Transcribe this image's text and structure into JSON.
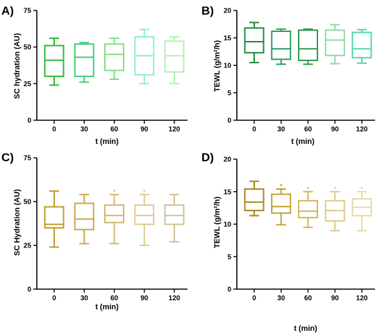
{
  "figure": {
    "panels": [
      {
        "letter": "A)",
        "ylabel": "SC hydration (AU)",
        "xlabel": "t (min)"
      },
      {
        "letter": "B)",
        "ylabel": "TEWL (g/m²/h)",
        "xlabel": "t (min)"
      },
      {
        "letter": "C)",
        "ylabel": "SC Hydration (AU)",
        "xlabel": "t (min)"
      },
      {
        "letter": "D)",
        "ylabel": "TEWL (g/m²/h)",
        "xlabel": "t (min)"
      }
    ]
  },
  "chart_data": [
    {
      "type": "boxplot",
      "title": "",
      "xlabel": "t (min)",
      "ylabel": "SC hydration (AU)",
      "categories": [
        "0",
        "30",
        "60",
        "90",
        "120"
      ],
      "ylim": [
        0,
        75
      ],
      "yticks": [
        0,
        25,
        50,
        75
      ],
      "boxes": [
        {
          "min": 24,
          "q1": 30,
          "median": 41,
          "q3": 51,
          "max": 56
        },
        {
          "min": 26,
          "q1": 30,
          "median": 43,
          "q3": 52,
          "max": 53
        },
        {
          "min": 28,
          "q1": 34,
          "median": 45,
          "q3": 52,
          "max": 56
        },
        {
          "min": 25,
          "q1": 31,
          "median": 44,
          "q3": 57,
          "max": 62
        },
        {
          "min": 25,
          "q1": 33,
          "median": 44,
          "q3": 54,
          "max": 57
        }
      ],
      "colors": [
        "#2db82d",
        "#3dcf7a",
        "#7fe07f",
        "#8ef0c8",
        "#b0f2b0"
      ],
      "markers": [
        "",
        "",
        "",
        "",
        ""
      ]
    },
    {
      "type": "boxplot",
      "title": "",
      "xlabel": "t (min)",
      "ylabel": "TEWL (g/m²/h)",
      "categories": [
        "0",
        "30",
        "60",
        "90",
        "120"
      ],
      "ylim": [
        0,
        20
      ],
      "yticks": [
        0,
        5,
        10,
        15,
        20
      ],
      "boxes": [
        {
          "min": 10.5,
          "q1": 12.3,
          "median": 14.3,
          "q3": 16.8,
          "max": 17.8
        },
        {
          "min": 10.2,
          "q1": 11.1,
          "median": 13.0,
          "q3": 16.2,
          "max": 16.6
        },
        {
          "min": 10.2,
          "q1": 10.9,
          "median": 13.0,
          "q3": 16.4,
          "max": 16.6
        },
        {
          "min": 10.3,
          "q1": 11.8,
          "median": 14.6,
          "q3": 16.4,
          "max": 17.4
        },
        {
          "min": 10.4,
          "q1": 11.4,
          "median": 13.0,
          "q3": 16.0,
          "max": 16.5
        }
      ],
      "colors": [
        "#1a8a3a",
        "#2a9d5a",
        "#2f9a4a",
        "#8fd8a8",
        "#4fd8b0"
      ],
      "markers": [
        "",
        "",
        "",
        "",
        ""
      ]
    },
    {
      "type": "boxplot",
      "title": "",
      "xlabel": "t (min)",
      "ylabel": "SC Hydration (AU)",
      "categories": [
        "0",
        "30",
        "60",
        "90",
        "120"
      ],
      "ylim": [
        0,
        75
      ],
      "yticks": [
        0,
        25,
        50,
        75
      ],
      "boxes": [
        {
          "min": 24,
          "q1": 35,
          "median": 37,
          "q3": 47,
          "max": 56
        },
        {
          "min": 26,
          "q1": 34,
          "median": 40,
          "q3": 49,
          "max": 54
        },
        {
          "min": 26,
          "q1": 38,
          "median": 42,
          "q3": 48,
          "max": 54
        },
        {
          "min": 25,
          "q1": 37,
          "median": 42,
          "q3": 48,
          "max": 54
        },
        {
          "min": 27,
          "q1": 37,
          "median": 42,
          "q3": 48,
          "max": 54
        }
      ],
      "colors": [
        "#c09a2a",
        "#c8a84a",
        "#d4b868",
        "#decb94",
        "#cfc29a"
      ],
      "markers": [
        "",
        "",
        "*",
        "*",
        ""
      ]
    },
    {
      "type": "boxplot",
      "title": "",
      "xlabel": "t (min)",
      "ylabel": "TEWL (g/m²/h)",
      "categories": [
        "0",
        "30",
        "60",
        "90",
        "120"
      ],
      "ylim": [
        0,
        20
      ],
      "yticks": [
        0,
        5,
        10,
        15,
        20
      ],
      "boxes": [
        {
          "min": 11.3,
          "q1": 12.1,
          "median": 13.4,
          "q3": 15.4,
          "max": 16.6
        },
        {
          "min": 9.9,
          "q1": 11.7,
          "median": 12.7,
          "q3": 14.6,
          "max": 15.4
        },
        {
          "min": 9.5,
          "q1": 11.0,
          "median": 12.0,
          "q3": 13.6,
          "max": 15.0
        },
        {
          "min": 9.0,
          "q1": 10.5,
          "median": 12.1,
          "q3": 13.6,
          "max": 15.0
        },
        {
          "min": 9.0,
          "q1": 11.3,
          "median": 12.6,
          "q3": 13.9,
          "max": 15.0
        }
      ],
      "colors": [
        "#a8861a",
        "#c0a030",
        "#d2b45a",
        "#ddc98a",
        "#e6d9a8"
      ],
      "markers": [
        "",
        "*",
        "*",
        "*",
        "*"
      ]
    }
  ]
}
